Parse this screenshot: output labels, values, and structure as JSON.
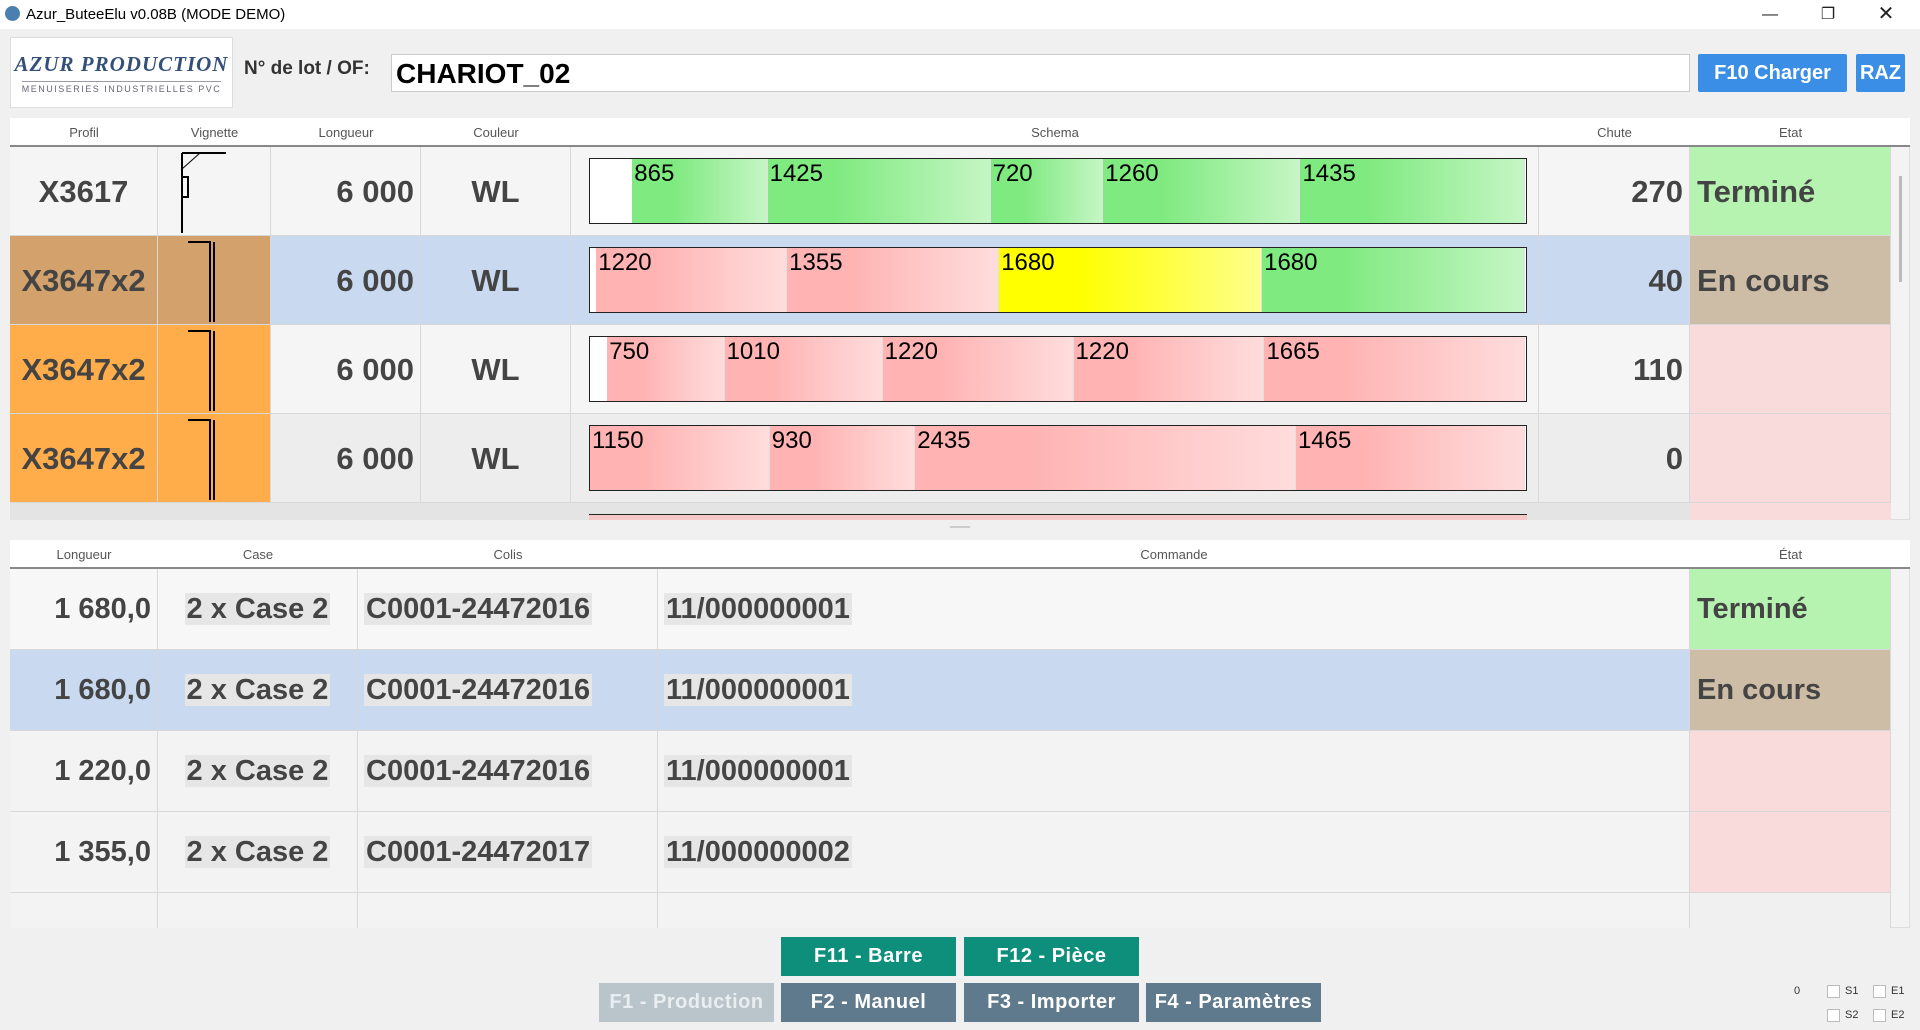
{
  "window": {
    "title": "Azur_ButeeElu v0.08B (MODE DEMO)"
  },
  "header": {
    "logo_title": "AZUR PRODUCTION",
    "logo_subtitle": "MENUISERIES INDUSTRIELLES PVC",
    "lot_label": "N° de lot / OF:",
    "lot_value": "CHARIOT_02",
    "load_button": "F10 Charger",
    "reset_button": "RAZ"
  },
  "bars_table": {
    "columns": [
      "Profil",
      "Vignette",
      "Longueur",
      "Couleur",
      "Schema",
      "Chute",
      "Etat"
    ],
    "rows": [
      {
        "profil": "X3617",
        "longueur": "6 000",
        "couleur": "WL",
        "chute": 270,
        "etat": "Terminé",
        "segments": [
          {
            "value": 865,
            "color": "#7fea7f"
          },
          {
            "value": 1425,
            "color": "#7fea7f"
          },
          {
            "value": 720,
            "color": "#7fea7f"
          },
          {
            "value": 1260,
            "color": "#7fea7f"
          },
          {
            "value": 1435,
            "color": "#7fea7f"
          }
        ]
      },
      {
        "profil": "X3647x2",
        "longueur": "6 000",
        "couleur": "WL",
        "chute": 40,
        "etat": "En cours",
        "segments": [
          {
            "value": 1220,
            "color": "#ffb3b3"
          },
          {
            "value": 1355,
            "color": "#ffb3b3"
          },
          {
            "value": 1680,
            "color": "#ffff00"
          },
          {
            "value": 1680,
            "color": "#7fea7f"
          }
        ]
      },
      {
        "profil": "X3647x2",
        "longueur": "6 000",
        "couleur": "WL",
        "chute": 110,
        "segments": [
          {
            "value": 750,
            "color": "#ffb3b3"
          },
          {
            "value": 1010,
            "color": "#ffb3b3"
          },
          {
            "value": 1220,
            "color": "#ffb3b3"
          },
          {
            "value": 1220,
            "color": "#ffb3b3"
          },
          {
            "value": 1665,
            "color": "#ffb3b3"
          }
        ]
      },
      {
        "profil": "X3647x2",
        "longueur": "6 000",
        "couleur": "WL",
        "chute": 0,
        "segments": [
          {
            "value": 1150,
            "color": "#ffb3b3"
          },
          {
            "value": 930,
            "color": "#ffb3b3"
          },
          {
            "value": 2435,
            "color": "#ffb3b3"
          },
          {
            "value": 1465,
            "color": "#ffb3b3"
          }
        ]
      }
    ]
  },
  "pieces_table": {
    "columns": [
      "Longueur",
      "Case",
      "Colis",
      "Commande",
      "État"
    ],
    "rows": [
      {
        "longueur": "1 680,0",
        "case": "2 x Case 2",
        "colis": "C0001-24472016",
        "commande": "11/000000001",
        "etat": "Terminé"
      },
      {
        "longueur": "1 680,0",
        "case": "2 x Case 2",
        "colis": "C0001-24472016",
        "commande": "11/000000001",
        "etat": "En cours"
      },
      {
        "longueur": "1 220,0",
        "case": "2 x Case 2",
        "colis": "C0001-24472016",
        "commande": "11/000000001"
      },
      {
        "longueur": "1 355,0",
        "case": "2 x Case 2",
        "colis": "C0001-24472017",
        "commande": "11/000000002"
      }
    ]
  },
  "buttons": [
    "F11 - Barre",
    "F12 - Pièce",
    "F1 - Production",
    "F2 - Manuel",
    "F3 - Importer",
    "F4 - Paramètres"
  ],
  "status": {
    "counter": 0,
    "inputs": [
      "S1",
      "E1",
      "S2",
      "E2"
    ]
  }
}
